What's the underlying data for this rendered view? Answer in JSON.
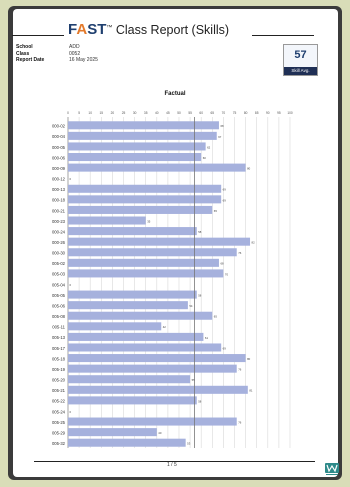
{
  "header": {
    "brand_prefix": "F",
    "brand_accent": "A",
    "brand_rest": "ST",
    "trademark": "™",
    "title_rest": " Class Report (Skills)"
  },
  "meta": {
    "labels": [
      "School",
      "Class",
      "Report Date"
    ],
    "values": [
      "ADD",
      "0052",
      "16 May 2025"
    ]
  },
  "skill_avg": {
    "value": "57",
    "label": "Skill Avg."
  },
  "chart_data": {
    "type": "bar",
    "orientation": "horizontal",
    "title": "Factual",
    "xlim": [
      0,
      100
    ],
    "x_ticks": [
      0,
      5,
      10,
      15,
      20,
      25,
      30,
      35,
      40,
      45,
      50,
      55,
      60,
      65,
      70,
      75,
      80,
      85,
      90,
      95,
      100
    ],
    "average_line": 57,
    "grid": true,
    "bar_color": "#a6b1dd",
    "categories": [
      "000-02",
      "000-04",
      "000-05",
      "000-06",
      "000-09",
      "000-12",
      "000-13",
      "000-18",
      "000-21",
      "000-23",
      "000-24",
      "000-26",
      "000-30",
      "005-02",
      "005-03",
      "005-04",
      "005-05",
      "005-06",
      "005-08",
      "005-11",
      "005-13",
      "005-17",
      "005-18",
      "005-19",
      "005-20",
      "005-21",
      "005-22",
      "005-24",
      "005-25",
      "005-29",
      "005-32"
    ],
    "values": [
      68,
      67,
      62,
      60,
      80,
      0,
      69,
      69,
      65,
      35,
      58,
      82,
      76,
      68,
      70,
      0,
      58,
      54,
      65,
      42,
      61,
      69,
      80,
      76,
      55,
      81,
      58,
      0,
      76,
      40,
      53
    ]
  },
  "footer": {
    "page": "1 / 5"
  },
  "colors": {
    "brand": "#1f3f6f",
    "accent": "#e37a2c",
    "avg_box": "#1f2f55",
    "logo": "#2e8a8a"
  }
}
